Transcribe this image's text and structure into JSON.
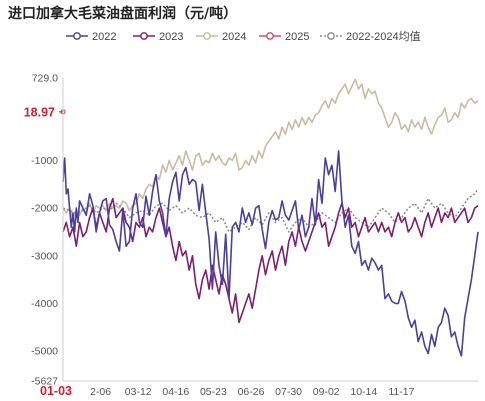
{
  "chart_data": {
    "type": "line",
    "title": "进口加拿大毛菜油盘面利润（元/吨）",
    "xlabel": "",
    "ylabel": "",
    "x_ticks": [
      "01-03",
      "2-06",
      "03-12",
      "04-16",
      "05-23",
      "06-26",
      "07-30",
      "09-02",
      "10-14",
      "11-17"
    ],
    "x_highlight": "01-03",
    "ylim": [
      -5627,
      729
    ],
    "y_ticks": [
      729,
      -1000,
      -2000,
      -3000,
      -4000,
      -5000,
      -5627
    ],
    "y_tick_labels": [
      "729.0",
      "-1000",
      "-2000",
      "-3000",
      "-4000",
      "-5000",
      "-5627"
    ],
    "y_highlight": {
      "value": 18.97,
      "label": "18.97"
    },
    "grid": false,
    "legend_position": "top",
    "series": [
      {
        "name": "2022",
        "color": "#4b3f9e",
        "marker": "circle",
        "x": [
          0,
          1,
          2,
          3,
          4,
          5,
          6,
          7,
          8,
          9,
          10,
          12,
          14,
          16,
          18,
          20,
          22,
          24,
          26,
          28,
          30,
          32,
          34,
          36,
          38,
          40,
          42,
          44,
          46,
          48,
          50,
          52,
          54,
          56,
          58,
          60,
          62,
          64,
          66,
          68,
          70,
          72,
          74,
          76,
          78,
          80,
          82,
          84,
          86,
          88,
          90,
          92,
          94,
          96,
          98,
          100,
          102,
          104,
          106,
          108,
          110,
          112,
          114,
          116,
          118,
          120,
          122,
          124,
          126,
          128,
          130,
          132,
          134,
          136,
          138,
          140,
          142,
          144,
          146,
          148,
          150,
          152,
          154,
          156,
          158,
          160,
          162,
          164,
          166,
          168,
          170,
          172,
          174,
          176,
          178,
          180,
          182,
          184,
          186,
          188,
          190,
          192,
          194,
          196,
          198,
          200,
          202,
          204,
          206,
          208,
          210,
          212,
          214,
          216,
          218,
          220,
          222,
          224,
          226,
          228,
          230,
          232,
          234,
          236,
          238,
          240,
          242,
          244,
          246,
          248,
          250
        ],
        "y": [
          -1450,
          -950,
          -1700,
          -1600,
          -2000,
          -2400,
          -2100,
          -2500,
          -2000,
          -2300,
          -1850,
          -2000,
          -2150,
          -1700,
          -1950,
          -2500,
          -2100,
          -1850,
          -1800,
          -2350,
          -2450,
          -2700,
          -2900,
          -2050,
          -2800,
          -2700,
          -2000,
          -1700,
          -2300,
          -2400,
          -1750,
          -2150,
          -1650,
          -1300,
          -1850,
          -2100,
          -2600,
          -1800,
          -1450,
          -1250,
          -1850,
          -1300,
          -1150,
          -1500,
          -1400,
          -1450,
          -2050,
          -1500,
          -2100,
          -2650,
          -3700,
          -2500,
          -3200,
          -3600,
          -2550,
          -3900,
          -2400,
          -2300,
          -2500,
          -2000,
          -2300,
          -2100,
          -2350,
          -2000,
          -1950,
          -2450,
          -2850,
          -2300,
          -2050,
          -2250,
          -2200,
          -1850,
          -2150,
          -2250,
          -2050,
          -1850,
          -2450,
          -2150,
          -2600,
          -2400,
          -1800,
          -2350,
          -1400,
          -1900,
          -950,
          -1300,
          -1100,
          -1650,
          -800,
          -1850,
          -2400,
          -2150,
          -2800,
          -2950,
          -2700,
          -3200,
          -3100,
          -3300,
          -3050,
          -3150,
          -3300,
          -3200,
          -3900,
          -3800,
          -3950,
          -4000,
          -4000,
          -3750,
          -3950,
          -4300,
          -4500,
          -4350,
          -4800,
          -4600,
          -4900,
          -5050,
          -4650,
          -4900,
          -4500,
          -4400,
          -4100,
          -4250,
          -4700,
          -4600,
          -4900,
          -5100,
          -4300,
          -3900,
          -3500,
          -3000,
          -2500
        ]
      },
      {
        "name": "2023",
        "color": "#7c1f70",
        "marker": "circle",
        "x": [
          0,
          2,
          4,
          6,
          8,
          10,
          12,
          14,
          16,
          18,
          20,
          22,
          24,
          26,
          28,
          30,
          32,
          34,
          36,
          38,
          40,
          42,
          44,
          46,
          48,
          50,
          52,
          54,
          56,
          58,
          60,
          62,
          64,
          66,
          68,
          70,
          72,
          74,
          76,
          78,
          80,
          82,
          84,
          86,
          88,
          90,
          92,
          94,
          96,
          98,
          100,
          102,
          104,
          106,
          108,
          110,
          112,
          114,
          116,
          118,
          120,
          122,
          124,
          126,
          128,
          130,
          132,
          134,
          136,
          138,
          140,
          142,
          144,
          146,
          148,
          150,
          152,
          154,
          156,
          158,
          160,
          162,
          164,
          166,
          168,
          170,
          172,
          174,
          176,
          178,
          180,
          182,
          184,
          186,
          188,
          190,
          192,
          194,
          196,
          198,
          200,
          202,
          204,
          206,
          208,
          210,
          212,
          214,
          216,
          218,
          220,
          222,
          224,
          226,
          228,
          230,
          232,
          234,
          236,
          238,
          240,
          242,
          244,
          246,
          248,
          250
        ],
        "y": [
          -2500,
          -2300,
          -2600,
          -2400,
          -2800,
          -2300,
          -2600,
          -2500,
          -2200,
          -2000,
          -2400,
          -2100,
          -2300,
          -2500,
          -2000,
          -1800,
          -2200,
          -2100,
          -2000,
          -2300,
          -2400,
          -2700,
          -2300,
          -2400,
          -2200,
          -2600,
          -2400,
          -2500,
          -2200,
          -2000,
          -2300,
          -2600,
          -2400,
          -2800,
          -3100,
          -2700,
          -3000,
          -2900,
          -3300,
          -3000,
          -3600,
          -3900,
          -3500,
          -3300,
          -3700,
          -3200,
          -3500,
          -3800,
          -3400,
          -3600,
          -3900,
          -4200,
          -3800,
          -4400,
          -4200,
          -4000,
          -3800,
          -4100,
          -3700,
          -3300,
          -3000,
          -3400,
          -3100,
          -2900,
          -3300,
          -3000,
          -2800,
          -3200,
          -2700,
          -2500,
          -2800,
          -2400,
          -2700,
          -2900,
          -2700,
          -2500,
          -2300,
          -2100,
          -2400,
          -2300,
          -2800,
          -2600,
          -2400,
          -2100,
          -1900,
          -2200,
          -2000,
          -2400,
          -2300,
          -2600,
          -2400,
          -2200,
          -2500,
          -2400,
          -2300,
          -2500,
          -2300,
          -2500,
          -2400,
          -2600,
          -2300,
          -2100,
          -2300,
          -2200,
          -2500,
          -2400,
          -2200,
          -2400,
          -2600,
          -2300,
          -2100,
          -2400,
          -2200,
          -2000,
          -2300,
          -2100,
          -2200,
          -2000,
          -2300,
          -2200,
          -2100,
          -2000,
          -2300,
          -2200,
          -2000,
          -1950
        ]
      },
      {
        "name": "2024",
        "color": "#c9bba4",
        "marker": "circle",
        "x": [
          0,
          2,
          4,
          6,
          8,
          10,
          12,
          14,
          16,
          18,
          20,
          22,
          24,
          26,
          28,
          30,
          32,
          34,
          36,
          38,
          40,
          42,
          44,
          46,
          48,
          50,
          52,
          54,
          56,
          58,
          60,
          62,
          64,
          66,
          68,
          70,
          72,
          74,
          76,
          78,
          80,
          82,
          84,
          86,
          88,
          90,
          92,
          94,
          96,
          98,
          100,
          102,
          104,
          106,
          108,
          110,
          112,
          114,
          116,
          118,
          120,
          122,
          124,
          126,
          128,
          130,
          132,
          134,
          136,
          138,
          140,
          142,
          144,
          146,
          148,
          150,
          152,
          154,
          156,
          158,
          160,
          162,
          164,
          166,
          168,
          170,
          172,
          174,
          176,
          178,
          180,
          182,
          184,
          186,
          188,
          190,
          192,
          194,
          196,
          198,
          200,
          202,
          204,
          206,
          208,
          210,
          212,
          214,
          216,
          218,
          220,
          222,
          224,
          226,
          228,
          230,
          232,
          234,
          236,
          238,
          240,
          242,
          244,
          246,
          248,
          250
        ],
        "y": [
          -2000,
          -2100,
          -2000,
          -2200,
          -2050,
          -2150,
          -2000,
          -2100,
          -1900,
          -2100,
          -1950,
          -2000,
          -1950,
          -2050,
          -1900,
          -2000,
          -1950,
          -2000,
          -1850,
          -1900,
          -2050,
          -1950,
          -1900,
          -1700,
          -1800,
          -1600,
          -1500,
          -1550,
          -1300,
          -1400,
          -1100,
          -1250,
          -1000,
          -1200,
          -1050,
          -900,
          -1100,
          -800,
          -1000,
          -1200,
          -900,
          -850,
          -1100,
          -1000,
          -1050,
          -850,
          -1000,
          -900,
          -1050,
          -1100,
          -950,
          -1000,
          -850,
          -1200,
          -1150,
          -1000,
          -1100,
          -900,
          -1050,
          -800,
          -950,
          -700,
          -600,
          -500,
          -400,
          -550,
          -300,
          -450,
          -200,
          -350,
          -150,
          -300,
          -100,
          -250,
          -100,
          -200,
          -50,
          0,
          150,
          250,
          100,
          300,
          200,
          400,
          500,
          600,
          400,
          550,
          700,
          500,
          600,
          300,
          500,
          400,
          450,
          200,
          100,
          -100,
          -300,
          -200,
          0,
          -100,
          -350,
          -250,
          -400,
          -150,
          -300,
          -200,
          -350,
          -100,
          -300,
          -450,
          -250,
          -100,
          -50,
          100,
          -200,
          -150,
          0,
          -100,
          200,
          100,
          250,
          300,
          200,
          250
        ]
      },
      {
        "name": "2025",
        "color": "#d94a6a",
        "marker": "circle",
        "x": [
          0
        ],
        "y": [
          18.97
        ]
      },
      {
        "name": "2022-2024均值",
        "color": "#8a8a8a",
        "marker": "circle",
        "dashed": true,
        "x": [
          0,
          4,
          8,
          12,
          16,
          20,
          24,
          28,
          32,
          36,
          40,
          44,
          48,
          52,
          56,
          60,
          64,
          68,
          72,
          76,
          80,
          84,
          88,
          92,
          96,
          100,
          104,
          108,
          112,
          116,
          120,
          124,
          128,
          132,
          136,
          140,
          144,
          148,
          152,
          156,
          160,
          164,
          168,
          172,
          176,
          180,
          184,
          188,
          192,
          196,
          200,
          204,
          208,
          212,
          216,
          220,
          224,
          228,
          232,
          236,
          240,
          244,
          248,
          250
        ],
        "y": [
          -2000,
          -2050,
          -2100,
          -2050,
          -1950,
          -2100,
          -2000,
          -2050,
          -1900,
          -2000,
          -2200,
          -2100,
          -2050,
          -2150,
          -1950,
          -1900,
          -2050,
          -1950,
          -2100,
          -2000,
          -2150,
          -2200,
          -2100,
          -2300,
          -2200,
          -2500,
          -2400,
          -2300,
          -2450,
          -2200,
          -2350,
          -2100,
          -2300,
          -2200,
          -2500,
          -2300,
          -2200,
          -2400,
          -2300,
          -2100,
          -2200,
          -2300,
          -2100,
          -2000,
          -2200,
          -2300,
          -2400,
          -2200,
          -2000,
          -2100,
          -2300,
          -2200,
          -2000,
          -1900,
          -2100,
          -1800,
          -2000,
          -1900,
          -2100,
          -2200,
          -2000,
          -1800,
          -1700,
          -1600
        ]
      }
    ]
  }
}
